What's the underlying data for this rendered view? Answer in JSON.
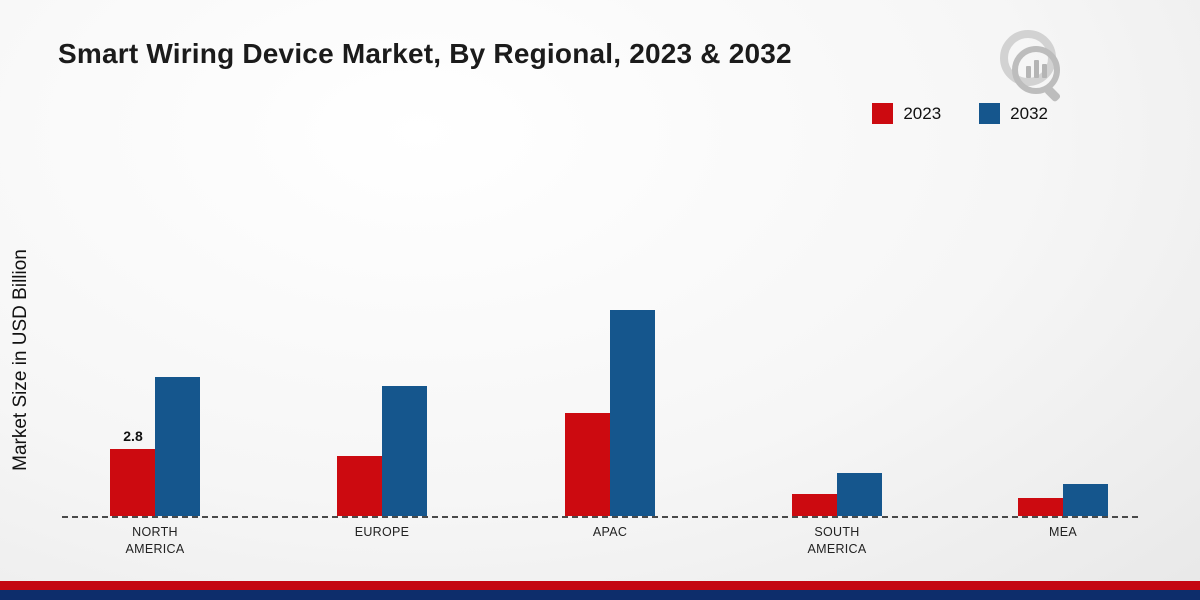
{
  "title": "Smart Wiring Device Market, By Regional, 2023 & 2032",
  "ylabel": "Market Size in USD Billion",
  "legend": [
    {
      "label": "2023",
      "color": "#cc0a10"
    },
    {
      "label": "2032",
      "color": "#15568d"
    }
  ],
  "chart_data": {
    "type": "bar",
    "categories": [
      "NORTH AMERICA",
      "EUROPE",
      "APAC",
      "SOUTH AMERICA",
      "MEA"
    ],
    "series": [
      {
        "name": "2023",
        "color": "#cc0a10",
        "values": [
          2.8,
          2.5,
          4.3,
          0.9,
          0.75
        ]
      },
      {
        "name": "2032",
        "color": "#15568d",
        "values": [
          5.8,
          5.4,
          8.6,
          1.8,
          1.35
        ]
      }
    ],
    "annotations": [
      {
        "series": "2023",
        "category": "NORTH AMERICA",
        "text": "2.8"
      }
    ],
    "title": "Smart Wiring Device Market, By Regional, 2023 & 2032",
    "xlabel": "",
    "ylabel": "Market Size in USD Billion",
    "ylim": [
      0,
      9
    ],
    "grid": false,
    "legend_position": "top-right",
    "baseline_style": "dashed"
  },
  "footer": {
    "stripe_colors": [
      "#c40712",
      "#0d2d6b"
    ]
  },
  "logo": {
    "name": "market-research-future-logo"
  }
}
